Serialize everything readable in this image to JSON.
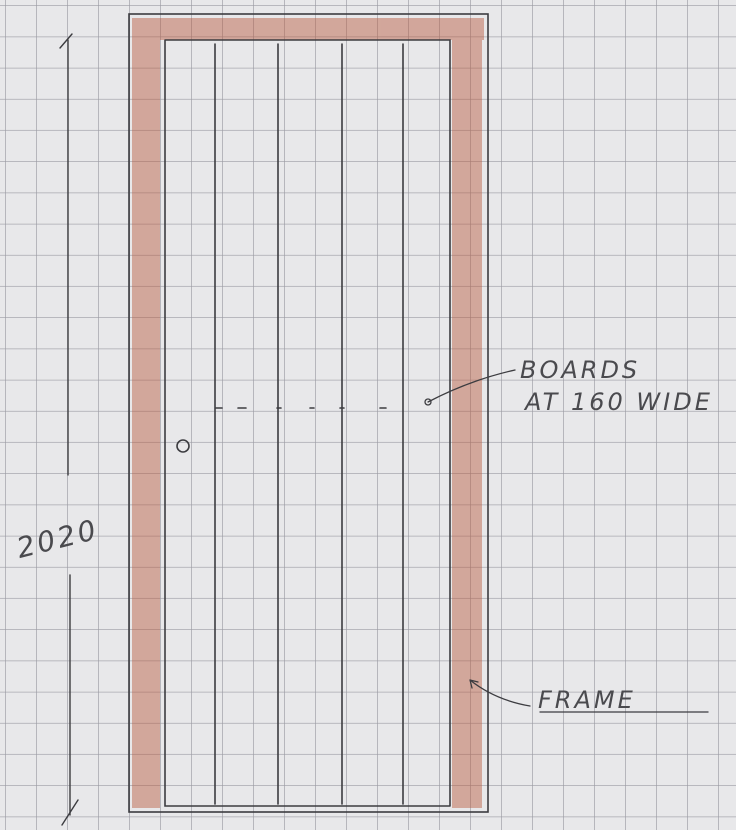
{
  "dimension": {
    "label": "2020"
  },
  "annotations": [
    {
      "lines": [
        "BOARDS",
        "AT 160 WIDE"
      ]
    },
    {
      "lines": [
        "FRAME"
      ]
    }
  ]
}
